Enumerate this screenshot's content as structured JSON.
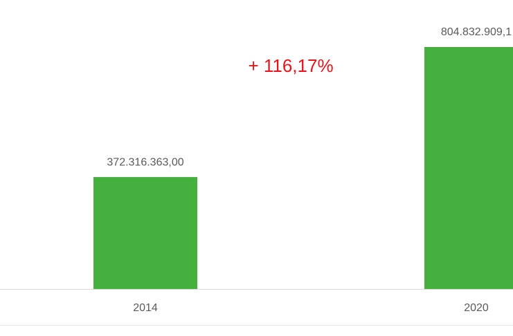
{
  "chart_data": {
    "type": "bar",
    "annotation": "+ 116,17%",
    "categories": [
      "2014",
      "2020"
    ],
    "values": [
      372316363.0,
      804832909.1
    ],
    "value_labels": [
      "372.316.363,00",
      "804.832.909,1"
    ],
    "color": "#46b03e"
  }
}
